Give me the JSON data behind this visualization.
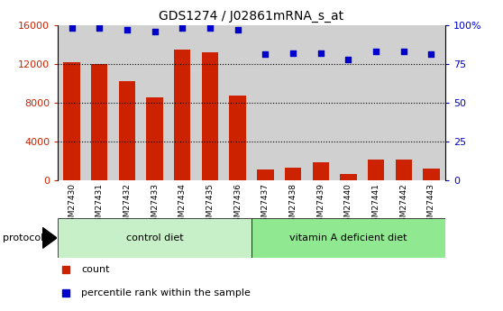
{
  "title": "GDS1274 / J02861mRNA_s_at",
  "samples": [
    "GSM27430",
    "GSM27431",
    "GSM27432",
    "GSM27433",
    "GSM27434",
    "GSM27435",
    "GSM27436",
    "GSM27437",
    "GSM27438",
    "GSM27439",
    "GSM27440",
    "GSM27441",
    "GSM27442",
    "GSM27443"
  ],
  "counts": [
    12200,
    12000,
    10200,
    8500,
    13500,
    13200,
    8700,
    1100,
    1300,
    1850,
    700,
    2100,
    2100,
    1200
  ],
  "percentile_ranks": [
    98,
    98,
    97,
    96,
    98,
    98,
    97,
    81,
    82,
    82,
    78,
    83,
    83,
    81
  ],
  "control_diet_count": 7,
  "vitamin_A_count": 7,
  "bar_color": "#cc2200",
  "dot_color": "#0000cc",
  "control_diet_bg": "#c8f0c8",
  "vitamin_A_bg": "#90e890",
  "tick_label_bg": "#d0d0d0",
  "plot_bg": "#ffffff",
  "ylim_left": [
    0,
    16000
  ],
  "ylim_right": [
    0,
    100
  ],
  "yticks_left": [
    0,
    4000,
    8000,
    12000,
    16000
  ],
  "ytick_labels_left": [
    "0",
    "4000",
    "8000",
    "12000",
    "16000"
  ],
  "yticks_right": [
    0,
    25,
    50,
    75,
    100
  ],
  "ytick_labels_right": [
    "0",
    "25",
    "50",
    "75",
    "100%"
  ],
  "legend_count_label": "count",
  "legend_percentile_label": "percentile rank within the sample",
  "protocol_label": "protocol",
  "control_diet_label": "control diet",
  "vitamin_A_label": "vitamin A deficient diet",
  "gridlines_at": [
    4000,
    8000,
    12000
  ]
}
